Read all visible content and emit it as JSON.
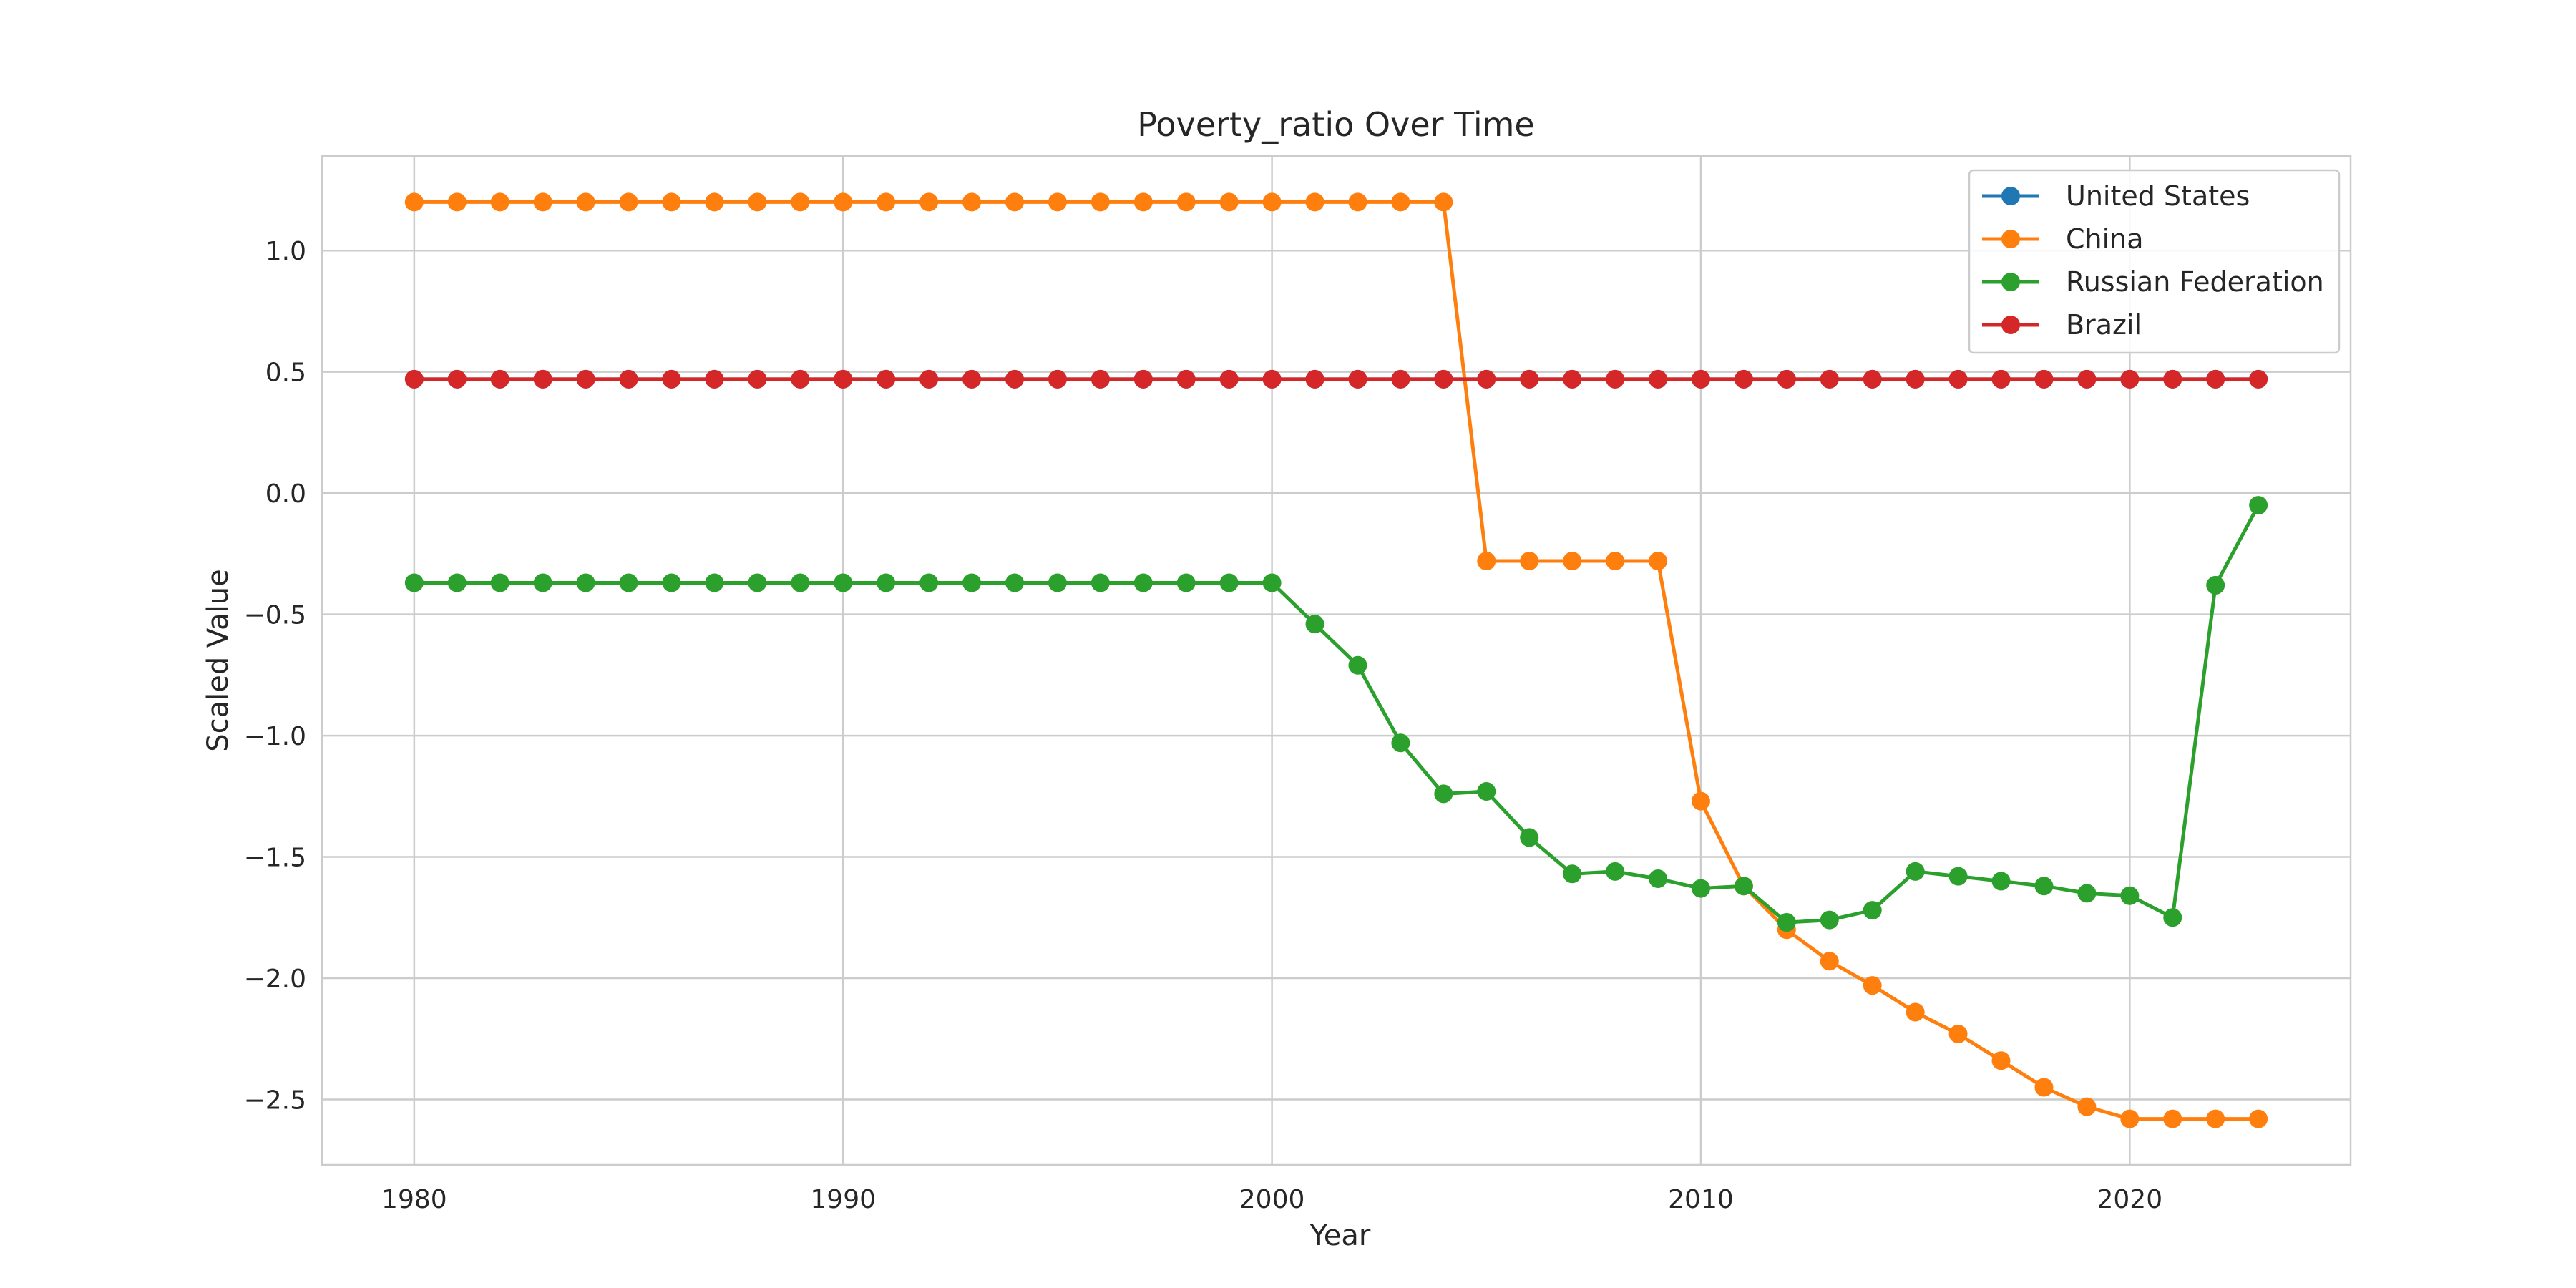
{
  "chart_data": {
    "type": "line",
    "title": "Poverty_ratio Over Time",
    "xlabel": "Year",
    "ylabel": "Scaled Value",
    "xlim": [
      1977.85,
      2025.15
    ],
    "ylim": [
      -2.77,
      1.39
    ],
    "x_ticks": [
      1980,
      1990,
      2000,
      2010,
      2020
    ],
    "y_ticks": [
      1.0,
      0.5,
      0.0,
      -0.5,
      -1.0,
      -1.5,
      -2.0,
      -2.5
    ],
    "y_tick_labels": [
      "1.0",
      "0.5",
      "0.0",
      "−0.5",
      "−1.0",
      "−1.5",
      "−2.0",
      "−2.5"
    ],
    "grid": true,
    "legend_position": "top-right",
    "x": [
      1980,
      1981,
      1982,
      1983,
      1984,
      1985,
      1986,
      1987,
      1988,
      1989,
      1990,
      1991,
      1992,
      1993,
      1994,
      1995,
      1996,
      1997,
      1998,
      1999,
      2000,
      2001,
      2002,
      2003,
      2004,
      2005,
      2006,
      2007,
      2008,
      2009,
      2010,
      2011,
      2012,
      2013,
      2014,
      2015,
      2016,
      2017,
      2018,
      2019,
      2020,
      2021,
      2022,
      2023
    ],
    "series": [
      {
        "name": "United States",
        "color": "#1f77b4",
        "values": [
          0.47,
          0.47,
          0.47,
          0.47,
          0.47,
          0.47,
          0.47,
          0.47,
          0.47,
          0.47,
          0.47,
          0.47,
          0.47,
          0.47,
          0.47,
          0.47,
          0.47,
          0.47,
          0.47,
          0.47,
          0.47,
          0.47,
          0.47,
          0.47,
          0.47,
          0.47,
          0.47,
          0.47,
          0.47,
          0.47,
          0.47,
          0.47,
          0.47,
          0.47,
          0.47,
          0.47,
          0.47,
          0.47,
          0.47,
          0.47,
          0.47,
          0.47,
          0.47,
          0.47
        ]
      },
      {
        "name": "China",
        "color": "#ff7f0e",
        "values": [
          1.2,
          1.2,
          1.2,
          1.2,
          1.2,
          1.2,
          1.2,
          1.2,
          1.2,
          1.2,
          1.2,
          1.2,
          1.2,
          1.2,
          1.2,
          1.2,
          1.2,
          1.2,
          1.2,
          1.2,
          1.2,
          1.2,
          1.2,
          1.2,
          1.2,
          -0.28,
          -0.28,
          -0.28,
          -0.28,
          -0.28,
          -1.27,
          -1.62,
          -1.8,
          -1.93,
          -2.03,
          -2.14,
          -2.23,
          -2.34,
          -2.45,
          -2.53,
          -2.58,
          -2.58,
          -2.58,
          -2.58
        ]
      },
      {
        "name": "Russian Federation",
        "color": "#2ca02c",
        "values": [
          -0.37,
          -0.37,
          -0.37,
          -0.37,
          -0.37,
          -0.37,
          -0.37,
          -0.37,
          -0.37,
          -0.37,
          -0.37,
          -0.37,
          -0.37,
          -0.37,
          -0.37,
          -0.37,
          -0.37,
          -0.37,
          -0.37,
          -0.37,
          -0.37,
          -0.54,
          -0.71,
          -1.03,
          -1.24,
          -1.23,
          -1.42,
          -1.57,
          -1.56,
          -1.59,
          -1.63,
          -1.62,
          -1.77,
          -1.76,
          -1.72,
          -1.56,
          -1.58,
          -1.6,
          -1.62,
          -1.65,
          -1.66,
          -1.75,
          -0.38,
          -0.05
        ]
      },
      {
        "name": "Brazil",
        "color": "#d62728",
        "values": [
          0.47,
          0.47,
          0.47,
          0.47,
          0.47,
          0.47,
          0.47,
          0.47,
          0.47,
          0.47,
          0.47,
          0.47,
          0.47,
          0.47,
          0.47,
          0.47,
          0.47,
          0.47,
          0.47,
          0.47,
          0.47,
          0.47,
          0.47,
          0.47,
          0.47,
          0.47,
          0.47,
          0.47,
          0.47,
          0.47,
          0.47,
          0.47,
          0.47,
          0.47,
          0.47,
          0.47,
          0.47,
          0.47,
          0.47,
          0.47,
          0.47,
          0.47,
          0.47,
          0.47
        ]
      }
    ]
  }
}
